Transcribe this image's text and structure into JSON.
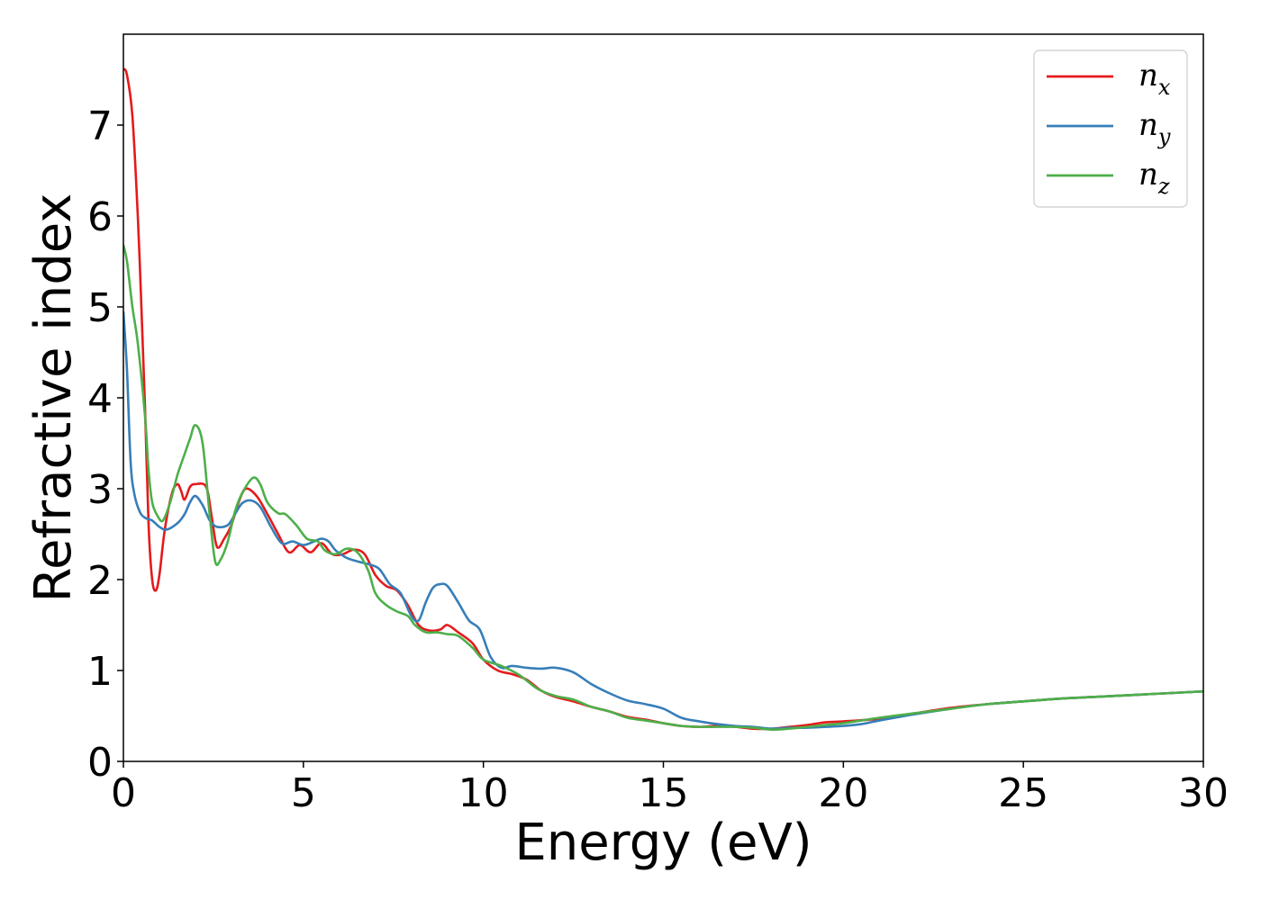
{
  "chart_data": {
    "type": "line",
    "xlabel": "Energy (eV)",
    "ylabel": "Refractive index",
    "xlim": [
      0,
      30
    ],
    "ylim": [
      0,
      8
    ],
    "xticks": [
      "0",
      "5",
      "10",
      "15",
      "20",
      "25",
      "30"
    ],
    "yticks": [
      "0",
      "1",
      "2",
      "3",
      "4",
      "5",
      "6",
      "7"
    ],
    "grid": false,
    "legend_position": "top-right",
    "series": [
      {
        "name": "n_x",
        "label_base": "n",
        "label_sub": "x",
        "color": "#e41a1c",
        "points": [
          [
            0.0,
            7.62
          ],
          [
            0.1,
            7.55
          ],
          [
            0.25,
            7.1
          ],
          [
            0.4,
            6.0
          ],
          [
            0.5,
            5.0
          ],
          [
            0.6,
            3.9
          ],
          [
            0.7,
            2.6
          ],
          [
            0.8,
            2.0
          ],
          [
            0.9,
            1.88
          ],
          [
            1.0,
            2.05
          ],
          [
            1.15,
            2.55
          ],
          [
            1.35,
            2.95
          ],
          [
            1.5,
            3.05
          ],
          [
            1.6,
            2.98
          ],
          [
            1.7,
            2.88
          ],
          [
            1.85,
            3.02
          ],
          [
            2.0,
            3.05
          ],
          [
            2.3,
            3.02
          ],
          [
            2.45,
            2.7
          ],
          [
            2.6,
            2.36
          ],
          [
            2.8,
            2.45
          ],
          [
            3.0,
            2.6
          ],
          [
            3.2,
            2.85
          ],
          [
            3.4,
            3.0
          ],
          [
            3.7,
            2.92
          ],
          [
            4.0,
            2.72
          ],
          [
            4.3,
            2.5
          ],
          [
            4.6,
            2.3
          ],
          [
            4.9,
            2.38
          ],
          [
            5.2,
            2.3
          ],
          [
            5.5,
            2.4
          ],
          [
            5.8,
            2.28
          ],
          [
            6.1,
            2.28
          ],
          [
            6.4,
            2.33
          ],
          [
            6.7,
            2.28
          ],
          [
            7.0,
            2.05
          ],
          [
            7.3,
            1.93
          ],
          [
            7.6,
            1.88
          ],
          [
            7.9,
            1.72
          ],
          [
            8.2,
            1.5
          ],
          [
            8.5,
            1.44
          ],
          [
            8.8,
            1.45
          ],
          [
            9.0,
            1.5
          ],
          [
            9.3,
            1.42
          ],
          [
            9.7,
            1.3
          ],
          [
            10.0,
            1.12
          ],
          [
            10.4,
            1.0
          ],
          [
            10.8,
            0.96
          ],
          [
            11.2,
            0.9
          ],
          [
            11.6,
            0.78
          ],
          [
            12.0,
            0.71
          ],
          [
            12.5,
            0.66
          ],
          [
            13.0,
            0.6
          ],
          [
            13.5,
            0.55
          ],
          [
            14.0,
            0.49
          ],
          [
            14.5,
            0.46
          ],
          [
            15.0,
            0.42
          ],
          [
            15.5,
            0.39
          ],
          [
            16.0,
            0.38
          ],
          [
            16.5,
            0.39
          ],
          [
            17.0,
            0.38
          ],
          [
            17.5,
            0.36
          ],
          [
            18.0,
            0.36
          ],
          [
            18.5,
            0.38
          ],
          [
            19.0,
            0.4
          ],
          [
            19.5,
            0.43
          ],
          [
            20.0,
            0.44
          ],
          [
            21.0,
            0.47
          ],
          [
            22.0,
            0.53
          ],
          [
            23.0,
            0.59
          ],
          [
            24.0,
            0.63
          ],
          [
            25.0,
            0.66
          ],
          [
            26.0,
            0.69
          ],
          [
            27.0,
            0.71
          ],
          [
            28.0,
            0.73
          ],
          [
            29.0,
            0.75
          ],
          [
            30.0,
            0.77
          ]
        ]
      },
      {
        "name": "n_y",
        "label_base": "n",
        "label_sub": "y",
        "color": "#377eb8",
        "points": [
          [
            0.0,
            4.95
          ],
          [
            0.1,
            4.3
          ],
          [
            0.2,
            3.3
          ],
          [
            0.3,
            2.95
          ],
          [
            0.45,
            2.75
          ],
          [
            0.6,
            2.68
          ],
          [
            0.8,
            2.65
          ],
          [
            1.0,
            2.58
          ],
          [
            1.2,
            2.55
          ],
          [
            1.5,
            2.62
          ],
          [
            1.7,
            2.72
          ],
          [
            1.85,
            2.85
          ],
          [
            2.0,
            2.92
          ],
          [
            2.2,
            2.82
          ],
          [
            2.4,
            2.65
          ],
          [
            2.6,
            2.58
          ],
          [
            2.9,
            2.6
          ],
          [
            3.1,
            2.72
          ],
          [
            3.3,
            2.84
          ],
          [
            3.55,
            2.87
          ],
          [
            3.8,
            2.8
          ],
          [
            4.1,
            2.58
          ],
          [
            4.4,
            2.4
          ],
          [
            4.7,
            2.42
          ],
          [
            5.0,
            2.38
          ],
          [
            5.3,
            2.42
          ],
          [
            5.5,
            2.45
          ],
          [
            5.7,
            2.42
          ],
          [
            5.9,
            2.32
          ],
          [
            6.2,
            2.24
          ],
          [
            6.5,
            2.2
          ],
          [
            6.8,
            2.17
          ],
          [
            7.1,
            2.12
          ],
          [
            7.4,
            1.95
          ],
          [
            7.7,
            1.85
          ],
          [
            8.0,
            1.6
          ],
          [
            8.2,
            1.55
          ],
          [
            8.4,
            1.75
          ],
          [
            8.6,
            1.91
          ],
          [
            8.8,
            1.95
          ],
          [
            9.0,
            1.93
          ],
          [
            9.3,
            1.75
          ],
          [
            9.6,
            1.55
          ],
          [
            9.9,
            1.45
          ],
          [
            10.2,
            1.15
          ],
          [
            10.5,
            1.03
          ],
          [
            10.8,
            1.05
          ],
          [
            11.2,
            1.03
          ],
          [
            11.6,
            1.02
          ],
          [
            12.0,
            1.03
          ],
          [
            12.5,
            0.98
          ],
          [
            13.0,
            0.85
          ],
          [
            13.5,
            0.75
          ],
          [
            14.0,
            0.67
          ],
          [
            14.5,
            0.63
          ],
          [
            15.0,
            0.58
          ],
          [
            15.5,
            0.48
          ],
          [
            16.0,
            0.44
          ],
          [
            16.5,
            0.41
          ],
          [
            17.0,
            0.39
          ],
          [
            17.5,
            0.38
          ],
          [
            18.0,
            0.36
          ],
          [
            18.5,
            0.37
          ],
          [
            19.0,
            0.37
          ],
          [
            19.5,
            0.38
          ],
          [
            20.0,
            0.39
          ],
          [
            20.5,
            0.41
          ],
          [
            21.0,
            0.45
          ],
          [
            22.0,
            0.52
          ],
          [
            23.0,
            0.58
          ],
          [
            24.0,
            0.63
          ],
          [
            25.0,
            0.66
          ],
          [
            26.0,
            0.69
          ],
          [
            27.0,
            0.71
          ],
          [
            28.0,
            0.73
          ],
          [
            29.0,
            0.75
          ],
          [
            30.0,
            0.77
          ]
        ]
      },
      {
        "name": "n_z",
        "label_base": "n",
        "label_sub": "z",
        "color": "#4daf4a",
        "points": [
          [
            0.0,
            5.68
          ],
          [
            0.1,
            5.5
          ],
          [
            0.25,
            5.0
          ],
          [
            0.4,
            4.6
          ],
          [
            0.6,
            3.8
          ],
          [
            0.7,
            3.2
          ],
          [
            0.8,
            2.85
          ],
          [
            0.95,
            2.7
          ],
          [
            1.1,
            2.65
          ],
          [
            1.3,
            2.85
          ],
          [
            1.5,
            3.15
          ],
          [
            1.7,
            3.38
          ],
          [
            1.85,
            3.55
          ],
          [
            2.0,
            3.7
          ],
          [
            2.2,
            3.5
          ],
          [
            2.4,
            2.7
          ],
          [
            2.55,
            2.2
          ],
          [
            2.7,
            2.22
          ],
          [
            2.9,
            2.42
          ],
          [
            3.1,
            2.75
          ],
          [
            3.3,
            2.95
          ],
          [
            3.6,
            3.12
          ],
          [
            3.8,
            3.05
          ],
          [
            4.0,
            2.85
          ],
          [
            4.3,
            2.73
          ],
          [
            4.5,
            2.72
          ],
          [
            4.8,
            2.6
          ],
          [
            5.1,
            2.45
          ],
          [
            5.4,
            2.42
          ],
          [
            5.6,
            2.32
          ],
          [
            5.9,
            2.28
          ],
          [
            6.2,
            2.34
          ],
          [
            6.5,
            2.3
          ],
          [
            6.8,
            2.1
          ],
          [
            7.0,
            1.85
          ],
          [
            7.3,
            1.72
          ],
          [
            7.6,
            1.65
          ],
          [
            7.9,
            1.6
          ],
          [
            8.1,
            1.5
          ],
          [
            8.4,
            1.42
          ],
          [
            8.7,
            1.42
          ],
          [
            9.0,
            1.4
          ],
          [
            9.3,
            1.38
          ],
          [
            9.7,
            1.25
          ],
          [
            10.0,
            1.12
          ],
          [
            10.5,
            1.05
          ],
          [
            11.0,
            0.95
          ],
          [
            11.5,
            0.8
          ],
          [
            12.0,
            0.72
          ],
          [
            12.5,
            0.68
          ],
          [
            13.0,
            0.6
          ],
          [
            13.5,
            0.55
          ],
          [
            14.0,
            0.48
          ],
          [
            14.5,
            0.45
          ],
          [
            15.0,
            0.42
          ],
          [
            15.5,
            0.39
          ],
          [
            16.0,
            0.38
          ],
          [
            16.5,
            0.38
          ],
          [
            17.0,
            0.38
          ],
          [
            17.5,
            0.37
          ],
          [
            18.0,
            0.35
          ],
          [
            18.5,
            0.36
          ],
          [
            19.0,
            0.38
          ],
          [
            19.5,
            0.4
          ],
          [
            20.0,
            0.42
          ],
          [
            21.0,
            0.48
          ],
          [
            22.0,
            0.53
          ],
          [
            23.0,
            0.58
          ],
          [
            24.0,
            0.63
          ],
          [
            25.0,
            0.66
          ],
          [
            26.0,
            0.69
          ],
          [
            27.0,
            0.71
          ],
          [
            28.0,
            0.73
          ],
          [
            29.0,
            0.75
          ],
          [
            30.0,
            0.77
          ]
        ]
      }
    ]
  }
}
